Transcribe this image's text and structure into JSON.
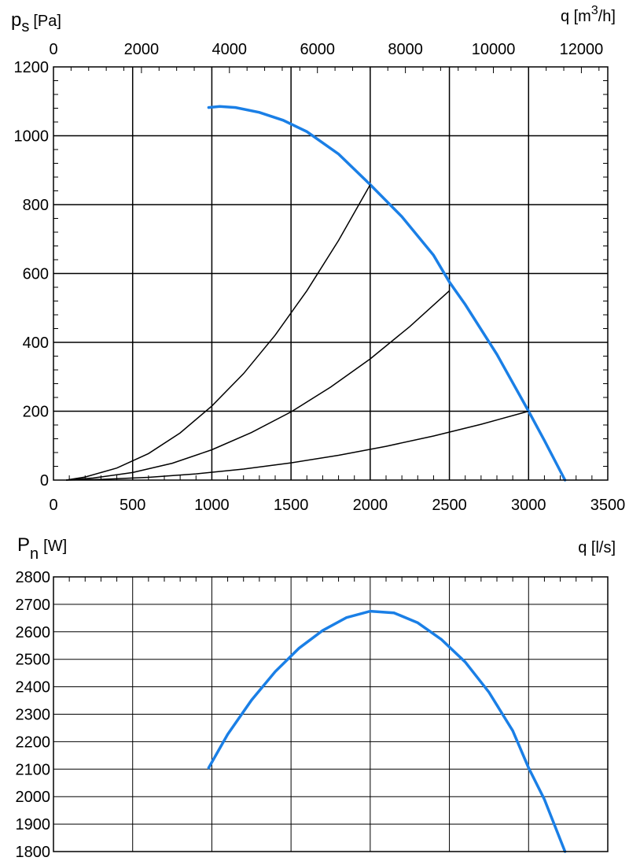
{
  "colors": {
    "fan_curve": "#1a7fe6",
    "system_curve": "#000000",
    "grid": "#000000"
  },
  "chart_data": [
    {
      "type": "line",
      "yaxis_label": "p",
      "yaxis_label_sub": "s",
      "yaxis_unit": "[Pa]",
      "top_axis_label": "q [m",
      "top_axis_sup": "3",
      "top_axis_unit": "/h]",
      "xlim": [
        0,
        3500
      ],
      "ylim": [
        0,
        1200
      ],
      "x_ticks": [
        0,
        500,
        1000,
        1500,
        2000,
        2500,
        3000,
        3500
      ],
      "y_ticks": [
        0,
        200,
        400,
        600,
        800,
        1000,
        1200
      ],
      "top_ticks": [
        0,
        2000,
        4000,
        6000,
        8000,
        10000,
        12000
      ],
      "top_scale_per_x": 3.6,
      "grid": true,
      "series": [
        {
          "role": "fan",
          "x": [
            980,
            1050,
            1150,
            1300,
            1450,
            1600,
            1800,
            2000,
            2200,
            2400,
            2500,
            2600,
            2800,
            3000,
            3100,
            3230
          ],
          "y": [
            1082,
            1085,
            1082,
            1068,
            1045,
            1012,
            947,
            858,
            765,
            653,
            575,
            510,
            365,
            200,
            115,
            0
          ]
        },
        {
          "role": "system",
          "x": [
            80,
            200,
            400,
            600,
            800,
            1000,
            1200,
            1400,
            1600,
            1800,
            2000
          ],
          "y": [
            0,
            9,
            35,
            77,
            137,
            215,
            309,
            421,
            550,
            696,
            858
          ]
        },
        {
          "role": "system",
          "x": [
            80,
            250,
            500,
            750,
            1000,
            1250,
            1500,
            1750,
            2000,
            2250,
            2500
          ],
          "y": [
            0,
            6,
            22,
            49,
            88,
            138,
            198,
            270,
            352,
            446,
            550
          ]
        },
        {
          "role": "system",
          "x": [
            80,
            300,
            600,
            900,
            1200,
            1500,
            1800,
            2100,
            2400,
            2700,
            3000
          ],
          "y": [
            0,
            2,
            8,
            18,
            32,
            50,
            72,
            98,
            128,
            162,
            200
          ]
        }
      ]
    },
    {
      "type": "line",
      "yaxis_label": "P",
      "yaxis_label_sub": "n",
      "yaxis_unit": "[W]",
      "xaxis_label": "q [l/s]",
      "xlim": [
        0,
        3500
      ],
      "ylim": [
        1800,
        2800
      ],
      "y_ticks": [
        1800,
        1900,
        2000,
        2100,
        2200,
        2300,
        2400,
        2500,
        2600,
        2700,
        2800
      ],
      "x_grid": [
        500,
        1000,
        1500,
        2000,
        2500,
        3000
      ],
      "grid": true,
      "series": [
        {
          "role": "fan",
          "x": [
            980,
            1100,
            1250,
            1400,
            1550,
            1700,
            1850,
            2000,
            2150,
            2300,
            2450,
            2600,
            2750,
            2900,
            3000,
            3100,
            3230
          ],
          "y": [
            2105,
            2227,
            2351,
            2455,
            2540,
            2605,
            2652,
            2675,
            2669,
            2633,
            2572,
            2490,
            2380,
            2240,
            2105,
            1990,
            1800
          ]
        }
      ]
    }
  ]
}
